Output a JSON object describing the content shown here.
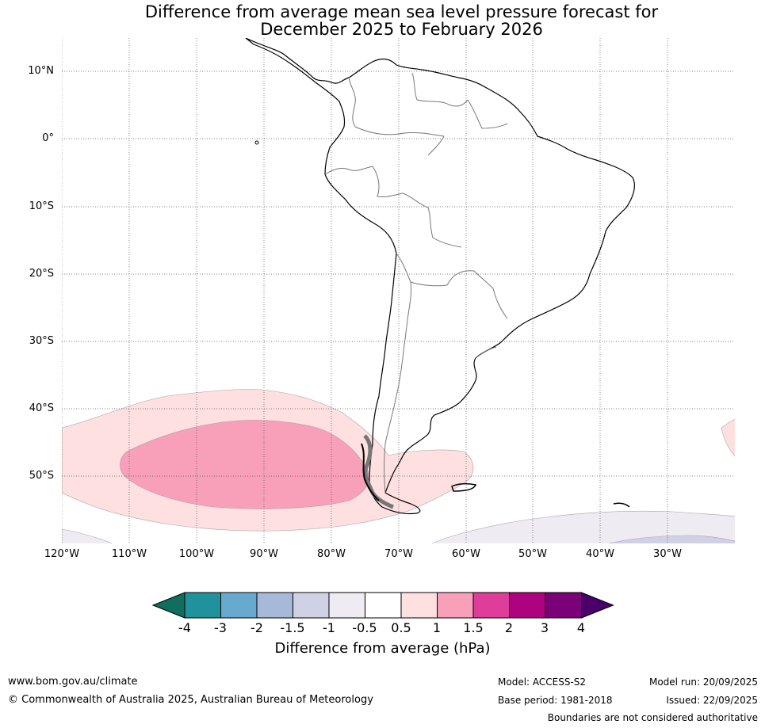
{
  "title": {
    "line1": "Difference from average mean sea level pressure forecast for",
    "line2": "December 2025 to February 2026"
  },
  "latitude_labels": [
    "10°N",
    "0°",
    "10°S",
    "20°S",
    "30°S",
    "40°S",
    "50°S"
  ],
  "longitude_labels": [
    "120°W",
    "110°W",
    "100°W",
    "90°W",
    "80°W",
    "70°W",
    "60°W",
    "50°W",
    "40°W",
    "30°W"
  ],
  "colorbar": {
    "ticks": [
      "-4",
      "-3",
      "-2",
      "-1.5",
      "-1",
      "-0.5",
      "0.5",
      "1",
      "1.5",
      "2",
      "3",
      "4"
    ],
    "colors": [
      "#0f6e5e",
      "#1f929c",
      "#68a9d0",
      "#a6b9d9",
      "#d1d1e6",
      "#efebf2",
      "#ffffff",
      "#fde0df",
      "#f89fb9",
      "#df3d9a",
      "#ae027e",
      "#7a0177",
      "#49006a"
    ],
    "label": "Difference from average (hPa)"
  },
  "anomaly_colors": {
    "pink_light": "#fde0df",
    "pink_medium": "#f89fb9",
    "lavender_light": "#efebf2",
    "lavender_medium": "#d1d1e6"
  },
  "footer": {
    "url": "www.bom.gov.au/climate",
    "copyright": "© Commonwealth of Australia 2025, Australian Bureau of Meteorology",
    "model": "Model: ACCESS-S2",
    "base_period": "Base period: 1981-2018",
    "model_run": "Model run: 20/09/2025",
    "issued": "Issued: 22/09/2025",
    "disclaimer": "Boundaries are not considered authoritative"
  }
}
